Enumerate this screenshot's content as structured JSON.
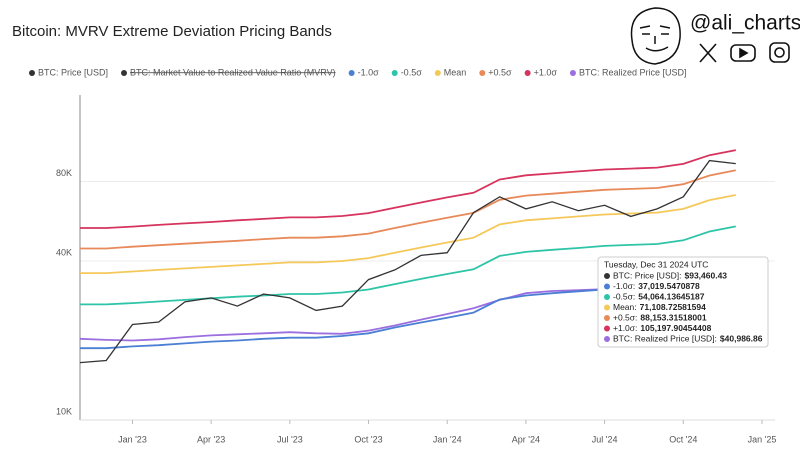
{
  "chart_data": {
    "type": "line",
    "title": "Bitcoin: MVRV Extreme Deviation Pricing Bands",
    "handle": "@ali_charts",
    "yscale": "log",
    "grid": true,
    "legend": "top",
    "x": [
      "2022-11",
      "2022-12",
      "2023-01",
      "2023-02",
      "2023-03",
      "2023-04",
      "2023-05",
      "2023-06",
      "2023-07",
      "2023-08",
      "2023-09",
      "2023-10",
      "2023-11",
      "2023-12",
      "2024-01",
      "2024-02",
      "2024-03",
      "2024-04",
      "2024-05",
      "2024-06",
      "2024-07",
      "2024-08",
      "2024-09",
      "2024-10",
      "2024-11",
      "2024-12"
    ],
    "xlim": [
      "2022-11",
      "2025-01"
    ],
    "xticks": [
      {
        "value": "2023-01",
        "label": "Jan '23"
      },
      {
        "value": "2023-04",
        "label": "Apr '23"
      },
      {
        "value": "2023-07",
        "label": "Jul '23"
      },
      {
        "value": "2023-10",
        "label": "Oct '23"
      },
      {
        "value": "2024-01",
        "label": "Jan '24"
      },
      {
        "value": "2024-04",
        "label": "Apr '24"
      },
      {
        "value": "2024-07",
        "label": "Jul '24"
      },
      {
        "value": "2024-10",
        "label": "Oct '24"
      },
      {
        "value": "2025-01",
        "label": "Jan '25"
      }
    ],
    "ylim": [
      10000,
      170000
    ],
    "yticks": [
      {
        "value": 10000,
        "label": "10K"
      },
      {
        "value": 40000,
        "label": "40K"
      },
      {
        "value": 80000,
        "label": "80K"
      }
    ],
    "hidden_series": [
      {
        "name": "BTC: Market Value to Realized Value Ratio (MVRV)",
        "color": "#333333"
      }
    ],
    "series": [
      {
        "name": "BTC: Price [USD]",
        "color": "#333333",
        "values": [
          16500,
          16800,
          23000,
          23500,
          28000,
          29000,
          27000,
          30000,
          29000,
          26000,
          27000,
          34000,
          37000,
          42000,
          43000,
          61000,
          70000,
          63000,
          67000,
          62000,
          65000,
          59000,
          63000,
          70000,
          96000,
          93460.43
        ]
      },
      {
        "name": "-1.0σ",
        "color": "#4a7fd4",
        "values": [
          18700,
          18700,
          19000,
          19200,
          19500,
          19800,
          20000,
          20300,
          20500,
          20500,
          20800,
          21300,
          22400,
          23400,
          24400,
          25500,
          28600,
          29600,
          30200,
          30700,
          31200,
          31500,
          31700,
          32800,
          35400,
          37019.5470878
        ]
      },
      {
        "name": "-0.5σ",
        "color": "#2ec4a8",
        "values": [
          27400,
          27400,
          27700,
          28100,
          28500,
          28900,
          29300,
          29600,
          30000,
          30000,
          30400,
          31200,
          32700,
          34200,
          35700,
          37200,
          41800,
          43300,
          44100,
          44800,
          45600,
          46000,
          46400,
          47900,
          51700,
          54064.13645187
        ]
      },
      {
        "name": "Mean",
        "color": "#f5c85a",
        "values": [
          36000,
          36000,
          36500,
          37000,
          37500,
          38000,
          38500,
          39000,
          39500,
          39500,
          40000,
          41000,
          43000,
          45000,
          47000,
          49000,
          55000,
          57000,
          58000,
          59000,
          60000,
          60500,
          61000,
          63000,
          68000,
          71108.72581594
        ]
      },
      {
        "name": "+0.5σ",
        "color": "#e8895a",
        "values": [
          44600,
          44600,
          45300,
          45900,
          46500,
          47100,
          47700,
          48400,
          49000,
          49000,
          49600,
          50800,
          53300,
          55800,
          58300,
          60800,
          68200,
          70700,
          71900,
          73200,
          74400,
          75000,
          75600,
          78100,
          84300,
          88153.31518001
        ]
      },
      {
        "name": "+1.0σ",
        "color": "#d6335e",
        "values": [
          53300,
          53300,
          54000,
          54800,
          55500,
          56200,
          57000,
          57700,
          58500,
          58500,
          59200,
          60700,
          63600,
          66600,
          69600,
          72500,
          81400,
          84400,
          85800,
          87300,
          88800,
          89500,
          90300,
          93200,
          100600,
          105197.90454408
        ]
      },
      {
        "name": "BTC: Realized Price [USD]",
        "color": "#9b6fe0",
        "values": [
          20300,
          20100,
          20000,
          20200,
          20600,
          20900,
          21100,
          21300,
          21500,
          21300,
          21200,
          21800,
          22800,
          24000,
          25200,
          26500,
          28500,
          30200,
          30800,
          31000,
          31300,
          31500,
          32000,
          34000,
          37500,
          40986.86
        ]
      }
    ],
    "tooltip": {
      "date": "Tuesday, Dec 31 2024 UTC",
      "rows": [
        {
          "label": "BTC: Price [USD]:",
          "value": "$93,460.43",
          "color": "#333333"
        },
        {
          "label": "-1.0σ:",
          "value": "37,019.5470878",
          "color": "#4a7fd4"
        },
        {
          "label": "-0.5σ:",
          "value": "54,064.13645187",
          "color": "#2ec4a8"
        },
        {
          "label": "Mean:",
          "value": "71,108.72581594",
          "color": "#f5c85a"
        },
        {
          "label": "+0.5σ:",
          "value": "88,153.31518001",
          "color": "#e8895a"
        },
        {
          "label": "+1.0σ:",
          "value": "105,197.90454408",
          "color": "#d6335e"
        },
        {
          "label": "BTC: Realized Price [USD]:",
          "value": "$40,986.86",
          "color": "#9b6fe0"
        }
      ]
    }
  }
}
